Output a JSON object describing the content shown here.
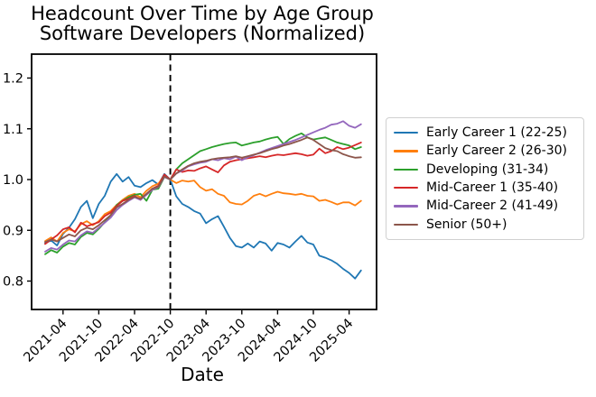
{
  "title": {
    "line1": "Headcount Over Time by Age Group",
    "line2": "Software Developers (Normalized)"
  },
  "axes": {
    "xlabel": "Date"
  },
  "legend": {
    "position": "right-outside",
    "items": [
      {
        "label": "Early Career 1 (22-25)",
        "color": "#1f77b4"
      },
      {
        "label": "Early Career 2 (26-30)",
        "color": "#ff7f0e"
      },
      {
        "label": "Developing (31-34)",
        "color": "#2ca02c"
      },
      {
        "label": "Mid-Career 1 (35-40)",
        "color": "#d62728"
      },
      {
        "label": "Mid-Career 2 (41-49)",
        "color": "#9467bd"
      },
      {
        "label": "Senior (50+)",
        "color": "#8c564b"
      }
    ]
  },
  "chart_data": {
    "type": "line",
    "title": "Headcount Over Time by Age Group",
    "subtitle": "Software Developers (Normalized)",
    "xlabel": "Date",
    "ylabel": "",
    "grid": false,
    "x_frequency": "monthly",
    "x_start": "2021-01",
    "x_end": "2025-06",
    "ylim": [
      0.745,
      1.247
    ],
    "y_ticks": [
      {
        "label": "0.8",
        "value": 0.8
      },
      {
        "label": "0.9",
        "value": 0.9
      },
      {
        "label": "1.0",
        "value": 1.0
      },
      {
        "label": "1.1",
        "value": 1.1
      },
      {
        "label": "1.2",
        "value": 1.2
      }
    ],
    "x_ticks": [
      {
        "label": "2021-04",
        "index": 3
      },
      {
        "label": "2021-10",
        "index": 9
      },
      {
        "label": "2022-04",
        "index": 15
      },
      {
        "label": "2022-10",
        "index": 21
      },
      {
        "label": "2023-04",
        "index": 27
      },
      {
        "label": "2023-10",
        "index": 33
      },
      {
        "label": "2024-04",
        "index": 39
      },
      {
        "label": "2024-10",
        "index": 45
      },
      {
        "label": "2025-04",
        "index": 51
      }
    ],
    "vline": {
      "at": "2022-10",
      "index": 21,
      "style": "dashed",
      "color": "#000000"
    },
    "normalized_at": "2022-10",
    "series": [
      {
        "name": "early-career-1",
        "label": "Early Career 1 (22-25)",
        "color": "#1f77b4",
        "values": [
          0.875,
          0.88,
          0.87,
          0.893,
          0.905,
          0.922,
          0.946,
          0.958,
          0.924,
          0.952,
          0.968,
          0.996,
          1.011,
          0.996,
          1.005,
          0.988,
          0.985,
          0.993,
          0.999,
          0.99,
          1.011,
          1.0,
          0.967,
          0.952,
          0.946,
          0.938,
          0.933,
          0.914,
          0.922,
          0.928,
          0.907,
          0.885,
          0.869,
          0.866,
          0.874,
          0.866,
          0.878,
          0.874,
          0.86,
          0.875,
          0.872,
          0.866,
          0.878,
          0.889,
          0.876,
          0.872,
          0.85,
          0.846,
          0.841,
          0.834,
          0.824,
          0.816,
          0.805,
          0.821
        ]
      },
      {
        "name": "early-career-2",
        "label": "Early Career 2 (26-30)",
        "color": "#ff7f0e",
        "values": [
          0.879,
          0.886,
          0.878,
          0.895,
          0.902,
          0.898,
          0.912,
          0.918,
          0.91,
          0.918,
          0.932,
          0.938,
          0.95,
          0.96,
          0.968,
          0.972,
          0.965,
          0.978,
          0.987,
          0.992,
          1.008,
          1.0,
          0.993,
          0.998,
          0.996,
          0.998,
          0.985,
          0.978,
          0.981,
          0.972,
          0.968,
          0.955,
          0.952,
          0.951,
          0.958,
          0.968,
          0.972,
          0.967,
          0.972,
          0.976,
          0.973,
          0.972,
          0.97,
          0.972,
          0.968,
          0.967,
          0.958,
          0.96,
          0.956,
          0.951,
          0.955,
          0.955,
          0.949,
          0.958
        ]
      },
      {
        "name": "developing",
        "label": "Developing (31-34)",
        "color": "#2ca02c",
        "values": [
          0.853,
          0.861,
          0.856,
          0.868,
          0.875,
          0.872,
          0.887,
          0.895,
          0.892,
          0.903,
          0.916,
          0.93,
          0.95,
          0.958,
          0.965,
          0.97,
          0.972,
          0.958,
          0.98,
          0.982,
          1.005,
          1.0,
          1.02,
          1.032,
          1.04,
          1.048,
          1.056,
          1.06,
          1.064,
          1.067,
          1.07,
          1.072,
          1.073,
          1.067,
          1.07,
          1.073,
          1.075,
          1.079,
          1.082,
          1.084,
          1.07,
          1.08,
          1.086,
          1.091,
          1.083,
          1.079,
          1.081,
          1.083,
          1.078,
          1.073,
          1.07,
          1.067,
          1.06,
          1.064
        ]
      },
      {
        "name": "mid-career-1",
        "label": "Mid-Career 1 (35-40)",
        "color": "#d62728",
        "values": [
          0.873,
          0.882,
          0.89,
          0.902,
          0.906,
          0.896,
          0.915,
          0.908,
          0.912,
          0.916,
          0.928,
          0.935,
          0.948,
          0.958,
          0.962,
          0.968,
          0.96,
          0.972,
          0.982,
          0.988,
          1.01,
          1.0,
          1.02,
          1.015,
          1.018,
          1.017,
          1.022,
          1.026,
          1.02,
          1.014,
          1.028,
          1.035,
          1.038,
          1.04,
          1.042,
          1.044,
          1.046,
          1.044,
          1.047,
          1.049,
          1.048,
          1.05,
          1.052,
          1.05,
          1.047,
          1.049,
          1.061,
          1.052,
          1.056,
          1.064,
          1.06,
          1.063,
          1.068,
          1.073
        ]
      },
      {
        "name": "mid-career-2",
        "label": "Mid-Career 2 (41-49)",
        "color": "#9467bd",
        "values": [
          0.858,
          0.865,
          0.862,
          0.872,
          0.88,
          0.878,
          0.89,
          0.898,
          0.895,
          0.905,
          0.915,
          0.925,
          0.94,
          0.95,
          0.958,
          0.965,
          0.96,
          0.97,
          0.98,
          0.985,
          1.005,
          1.0,
          1.012,
          1.018,
          1.026,
          1.03,
          1.033,
          1.035,
          1.04,
          1.038,
          1.042,
          1.04,
          1.045,
          1.038,
          1.044,
          1.048,
          1.053,
          1.058,
          1.062,
          1.066,
          1.07,
          1.074,
          1.078,
          1.083,
          1.088,
          1.093,
          1.098,
          1.102,
          1.108,
          1.11,
          1.115,
          1.106,
          1.102,
          1.109
        ]
      },
      {
        "name": "senior",
        "label": "Senior (50+)",
        "color": "#8c564b",
        "values": [
          0.877,
          0.882,
          0.878,
          0.885,
          0.892,
          0.888,
          0.9,
          0.905,
          0.902,
          0.91,
          0.92,
          0.93,
          0.945,
          0.952,
          0.96,
          0.966,
          0.962,
          0.972,
          0.982,
          0.986,
          1.006,
          1.0,
          1.012,
          1.02,
          1.027,
          1.032,
          1.035,
          1.037,
          1.04,
          1.042,
          1.043,
          1.044,
          1.046,
          1.043,
          1.046,
          1.049,
          1.052,
          1.056,
          1.06,
          1.063,
          1.067,
          1.07,
          1.074,
          1.078,
          1.083,
          1.078,
          1.07,
          1.062,
          1.058,
          1.056,
          1.05,
          1.046,
          1.043,
          1.044
        ]
      }
    ]
  }
}
